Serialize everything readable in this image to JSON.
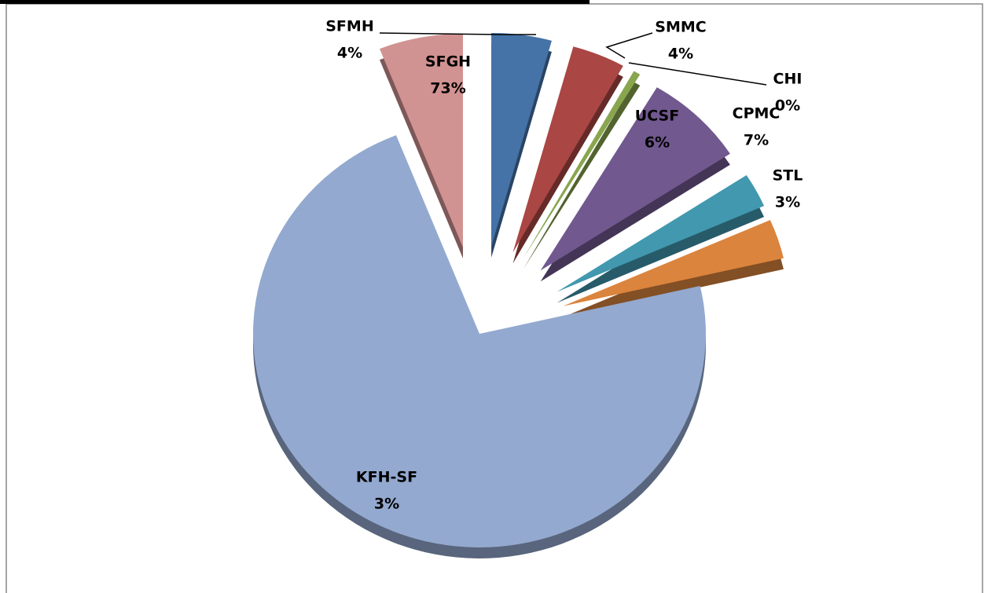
{
  "chart_data": {
    "type": "pie",
    "categories": [
      "SFMH",
      "SMMC",
      "CHI",
      "CPMC",
      "STL",
      "KFH-SF",
      "SFGH",
      "UCSF"
    ],
    "values": [
      4.3,
      3.8,
      0.5,
      7.2,
      2.6,
      3.0,
      72.6,
      6.0
    ],
    "value_labels": [
      "4%",
      "4%",
      "0%",
      "7%",
      "3%",
      "3%",
      "73%",
      "6%"
    ],
    "colors": [
      "#4572a7",
      "#aa4643",
      "#89a54e",
      "#71588f",
      "#4198af",
      "#db843d",
      "#93a9cf",
      "#d19392"
    ]
  }
}
